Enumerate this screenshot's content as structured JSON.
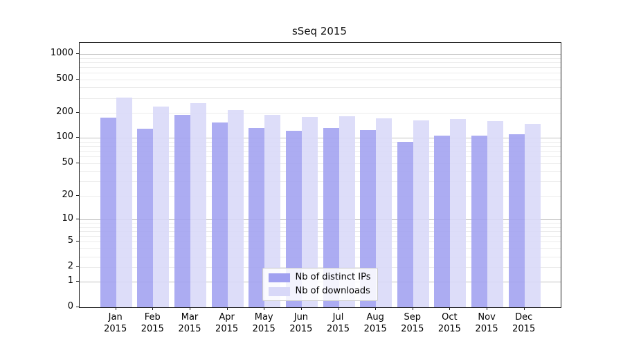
{
  "chart_data": {
    "type": "bar",
    "title": "sSeq 2015",
    "categories": [
      "Jan",
      "Feb",
      "Mar",
      "Apr",
      "May",
      "Jun",
      "Jul",
      "Aug",
      "Sep",
      "Oct",
      "Nov",
      "Dec"
    ],
    "x_year": "2015",
    "series": [
      {
        "name": "Nb of distinct IPs",
        "color": "#a0a0f0",
        "values": [
          174,
          129,
          188,
          154,
          132,
          123,
          133,
          124,
          90,
          107,
          107,
          110
        ]
      },
      {
        "name": "Nb of downloads",
        "color": "#d8d8f8",
        "values": [
          305,
          237,
          262,
          217,
          190,
          180,
          182,
          171,
          163,
          168,
          159,
          148
        ]
      }
    ],
    "yscale": "log1p",
    "ylim": [
      0,
      1350
    ],
    "yticks": [
      0,
      1,
      2,
      5,
      10,
      20,
      50,
      100,
      200,
      500,
      1000
    ],
    "major_gridlines": [
      1,
      10,
      100,
      1000
    ],
    "grid": "both",
    "legend_position": "lower center",
    "colors": {
      "major_grid": "#c0c0c0",
      "minor_grid": "#ebebeb",
      "spine": "#1a1a1a",
      "text": "#000000",
      "background": "#ffffff"
    }
  }
}
